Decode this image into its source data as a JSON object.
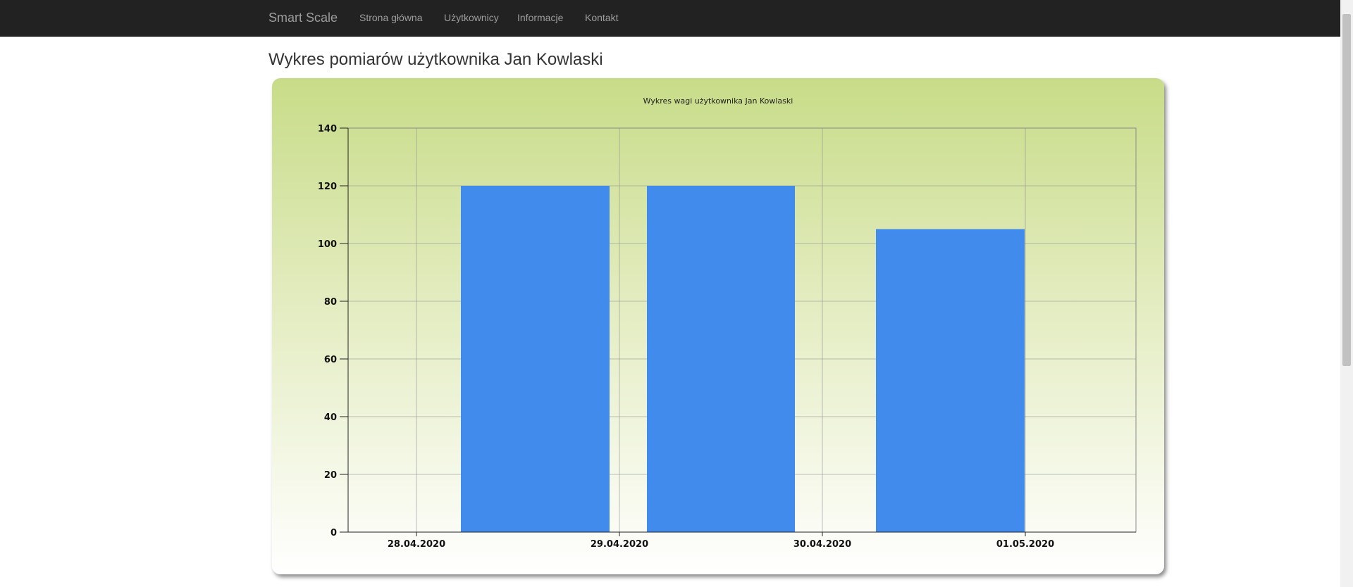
{
  "navbar": {
    "brand": "Smart Scale",
    "items": [
      {
        "label": "Strona główna"
      },
      {
        "label": "Użytkownicy"
      },
      {
        "label": "Informacje"
      },
      {
        "label": "Kontakt"
      }
    ]
  },
  "page": {
    "title": "Wykres pomiarów użytkownika Jan Kowlaski"
  },
  "colors": {
    "bar": "#418bed",
    "grid": "#8a8a8a",
    "navbar": "#222222"
  },
  "chart_data": {
    "type": "bar",
    "title": "Wykres wagi użytkownika Jan Kowlaski",
    "xlabel": "",
    "ylabel": "",
    "ylim": [
      0,
      140
    ],
    "y_ticks": [
      0,
      20,
      40,
      60,
      80,
      100,
      120,
      140
    ],
    "x_tick_labels": [
      "28.04.2020",
      "29.04.2020",
      "30.04.2020",
      "01.05.2020"
    ],
    "bars": [
      {
        "from": "28.04.2020",
        "to": "29.04.2020",
        "value": 120
      },
      {
        "from": "29.04.2020",
        "to": "30.04.2020",
        "value": 120
      },
      {
        "from": "30.04.2020",
        "to": "01.05.2020",
        "value": 105
      }
    ],
    "grid": true,
    "legend": "none"
  }
}
